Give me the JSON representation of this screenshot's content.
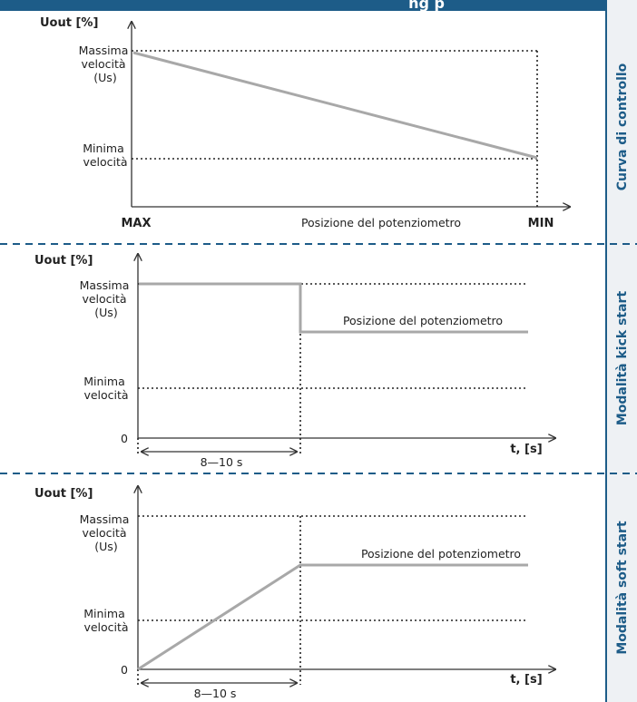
{
  "header": {
    "title_fragment": "ng       p"
  },
  "colors": {
    "brand": "#1d5c88",
    "curve": "#a8a8a8",
    "divider": "#1d5c88"
  },
  "sections": [
    {
      "side_label": "Curva di controllo",
      "y_axis_title": "Uout [%]",
      "max_label": [
        "Massima",
        "velocità",
        "(Us)"
      ],
      "min_label": [
        "Minima",
        "velocità"
      ],
      "x_left": "MAX",
      "x_mid": "Posizione del potenziometro",
      "x_right": "MIN"
    },
    {
      "side_label": "Modalità kick start",
      "y_axis_title": "Uout [%]",
      "max_label": [
        "Massima",
        "velocità",
        "(Us)"
      ],
      "min_label": [
        "Minima",
        "velocità"
      ],
      "zero": "0",
      "curve_label": "Posizione del potenziometro",
      "duration": "8—10 s",
      "x_axis_title": "t, [s]"
    },
    {
      "side_label": "Modalità soft start",
      "y_axis_title": "Uout [%]",
      "max_label": [
        "Massima",
        "velocità",
        "(Us)"
      ],
      "min_label": [
        "Minima",
        "velocità"
      ],
      "zero": "0",
      "curve_label": "Posizione del potenziometro",
      "duration": "8—10 s",
      "x_axis_title": "t, [s]"
    }
  ]
}
